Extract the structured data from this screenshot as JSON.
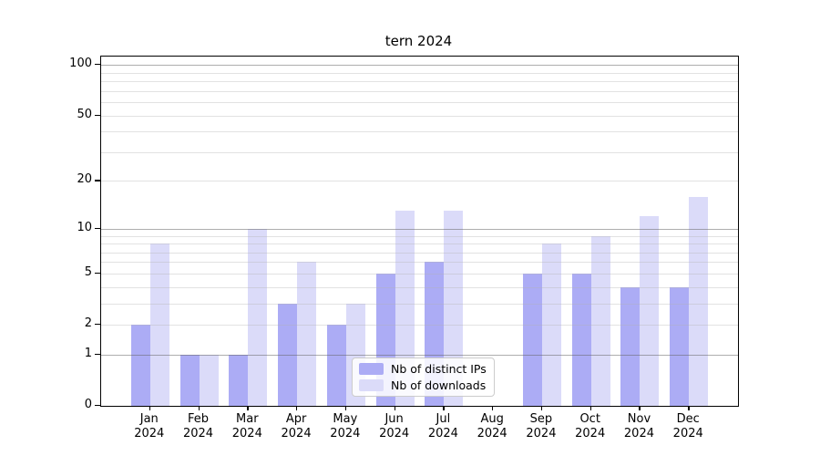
{
  "chart_data": {
    "type": "bar",
    "title": "tern 2024",
    "categories": [
      "Jan",
      "Feb",
      "Mar",
      "Apr",
      "May",
      "Jun",
      "Jul",
      "Aug",
      "Sep",
      "Oct",
      "Nov",
      "Dec"
    ],
    "year_label": "2024",
    "series": [
      {
        "name": "Nb of distinct IPs",
        "color": "#acacf5",
        "values": [
          2,
          1,
          1,
          3,
          2,
          5,
          6,
          0,
          5,
          5,
          4,
          4
        ]
      },
      {
        "name": "Nb of downloads",
        "color": "#dbdbf9",
        "values": [
          8,
          1,
          10,
          6,
          3,
          13,
          13,
          0,
          8,
          9,
          12,
          16
        ]
      }
    ],
    "y_axis": {
      "scale": "log10(1+x)",
      "tick_labels": [
        0,
        1,
        2,
        5,
        10,
        20,
        50,
        100
      ],
      "major_gridlines": [
        1,
        10,
        100
      ],
      "minor_gridlines": [
        2,
        3,
        4,
        5,
        6,
        7,
        8,
        9,
        20,
        30,
        40,
        50,
        60,
        70,
        80,
        90
      ],
      "ylim": [
        0,
        112
      ]
    },
    "legend": {
      "position": "lower-center",
      "items": [
        "Nb of distinct IPs",
        "Nb of downloads"
      ]
    },
    "grid": "on"
  }
}
